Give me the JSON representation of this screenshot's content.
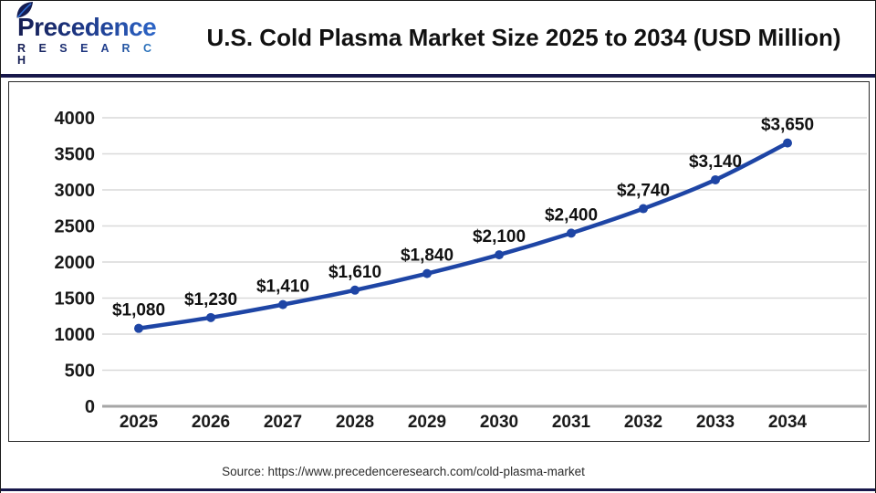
{
  "header": {
    "logo": {
      "name": "Precedence",
      "subtitle": "R E S E A R C H"
    },
    "title": "U.S. Cold Plasma Market Size 2025 to 2034 (USD Million)"
  },
  "footer": {
    "source": "Source: https://www.precedenceresearch.com/cold-plasma-market"
  },
  "colors": {
    "line": "#1E45A5",
    "marker": "#1E45A5",
    "grid": "#D9D9D9",
    "axis": "#A6A6A6",
    "tick_text": "#1A1A1A",
    "data_label_text": "#111111",
    "separator": "#17174A",
    "logo_navy": "#1B2766",
    "logo_blue": "#2F6FD6"
  },
  "chart_data": {
    "type": "line",
    "title": "U.S. Cold Plasma Market Size 2025 to 2034 (USD Million)",
    "series_name": "U.S. Cold Plasma Market Size (USD Million)",
    "categories": [
      "2025",
      "2026",
      "2027",
      "2028",
      "2029",
      "2030",
      "2031",
      "2032",
      "2033",
      "2034"
    ],
    "values": [
      1080,
      1230,
      1410,
      1610,
      1840,
      2100,
      2400,
      2740,
      3140,
      3650
    ],
    "point_labels": [
      "$1,080",
      "$1,230",
      "$1,410",
      "$1,610",
      "$1,840",
      "$2,100",
      "$2,400",
      "$2,740",
      "$3,140",
      "$3,650"
    ],
    "xlabel": "",
    "ylabel": "",
    "ylim": [
      0,
      4000
    ],
    "yticks": [
      0,
      500,
      1000,
      1500,
      2000,
      2500,
      3000,
      3500,
      4000
    ],
    "grid": true,
    "legend": false
  }
}
